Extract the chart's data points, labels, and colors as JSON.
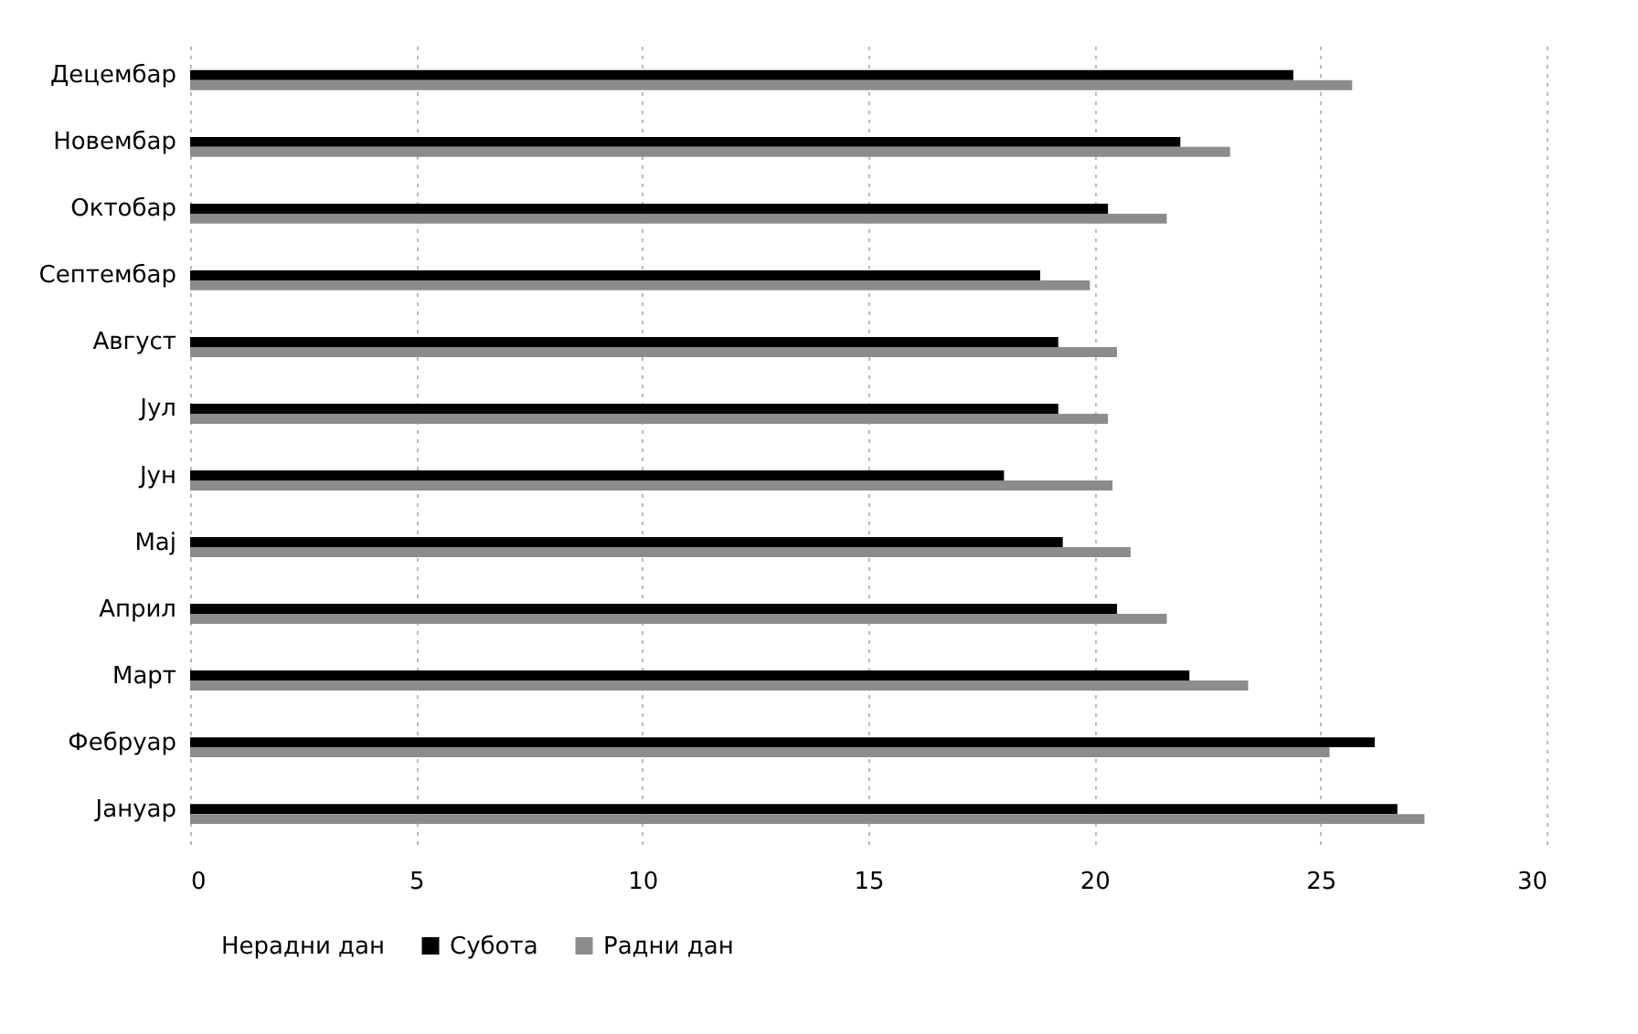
{
  "chart_data": {
    "type": "bar",
    "orientation": "horizontal",
    "categories": [
      "Децембар",
      "Новембар",
      "Октобар",
      "Септембар",
      "Август",
      "Јул",
      "Јун",
      "Мај",
      "Април",
      "Март",
      "Фебруар",
      "Јануар"
    ],
    "series": [
      {
        "name": "Нерадни дан",
        "values": [
          null,
          null,
          null,
          null,
          null,
          null,
          null,
          null,
          null,
          null,
          null,
          null
        ]
      },
      {
        "name": "Субота",
        "color": "#000000",
        "values": [
          24.4,
          21.9,
          20.3,
          18.8,
          19.2,
          19.2,
          18.0,
          19.3,
          20.5,
          22.1,
          26.2,
          26.7
        ]
      },
      {
        "name": "Радни дан",
        "color": "#8c8c8c",
        "values": [
          25.7,
          23.0,
          21.6,
          19.9,
          20.5,
          20.3,
          20.4,
          20.8,
          21.6,
          23.4,
          25.2,
          27.3
        ]
      }
    ],
    "xlim": [
      0,
      30
    ],
    "xticks": [
      0,
      5,
      10,
      15,
      20,
      25,
      30
    ],
    "grid": "x",
    "legend": "bottom"
  }
}
